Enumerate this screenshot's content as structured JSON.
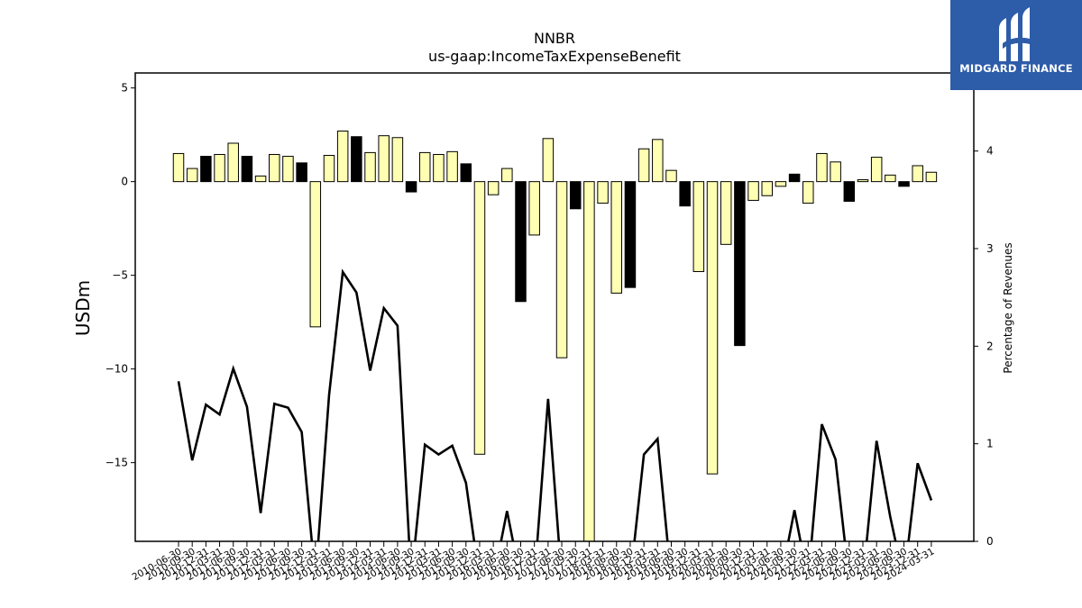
{
  "brand": {
    "name": "MIDGARD FINANCE",
    "color": "#2d5ca8"
  },
  "chart_data": {
    "type": "bar",
    "title": "NNBR",
    "subtitle": "us-gaap:IncomeTaxExpenseBenefit",
    "ylabel": "USDm",
    "ylabel_right": "Percentage of Revenues",
    "ylim": [
      -19.2,
      5.8
    ],
    "ylim_right": [
      0,
      4.8
    ],
    "yticks": [
      5,
      0,
      -5,
      -10,
      -15
    ],
    "yticks_right": [
      0,
      1,
      2,
      3,
      4
    ],
    "grid": false,
    "colors": {
      "positive_bar": "#ffffb3",
      "annual_bar": "#000000",
      "line": "#000000"
    },
    "x": [
      "2010-06-30",
      "2010-09-30",
      "2010-12-31",
      "2011-03-31",
      "2011-06-30",
      "2011-09-30",
      "2011-12-31",
      "2012-03-31",
      "2012-06-30",
      "2012-09-30",
      "2012-12-31",
      "2013-03-31",
      "2013-06-30",
      "2013-09-30",
      "2013-12-31",
      "2014-03-31",
      "2014-06-30",
      "2014-09-30",
      "2014-12-31",
      "2015-03-31",
      "2015-06-30",
      "2015-09-30",
      "2015-12-31",
      "2016-03-31",
      "2016-06-30",
      "2016-09-30",
      "2016-12-31",
      "2017-03-31",
      "2017-06-30",
      "2017-09-30",
      "2017-12-31",
      "2018-03-31",
      "2018-06-30",
      "2018-09-30",
      "2018-12-31",
      "2019-03-31",
      "2019-06-30",
      "2019-09-30",
      "2019-12-31",
      "2020-03-31",
      "2020-06-30",
      "2020-09-30",
      "2020-12-31",
      "2021-03-31",
      "2021-06-30",
      "2021-09-30",
      "2021-12-31",
      "2022-03-31",
      "2022-06-30",
      "2022-09-30",
      "2022-12-31",
      "2023-03-31",
      "2023-06-30",
      "2023-09-30",
      "2023-12-31",
      "2024-03-31"
    ],
    "xtick_labels": [
      "2010-06-30",
      "2010-09-30",
      "2010-12-31",
      "2011-03-31",
      "2011-06-30",
      "2011-09-30",
      "2011-12-31",
      "2012-03-31",
      "2012-06-30",
      "2012-09-30",
      "2012-12-31",
      "2013-03-31",
      "2013-06-30",
      "2013-09-30",
      "2013-12-31",
      "2014-03-31",
      "2014-06-30",
      "2014-09-30",
      "2014-12-31",
      "2015-03-31",
      "2015-06-30",
      "2015-09-30",
      "2015-12-31",
      "2016-03-31",
      "2016-06-30",
      "2016-09-30",
      "2016-12-31",
      "2017-03-31",
      "2017-06-30",
      "2017-09-30",
      "2017-12-31",
      "2018-03-31",
      "2018-06-30",
      "2018-09-30",
      "2018-12-31",
      "2019-03-31",
      "2019-06-30",
      "2019-09-30",
      "2019-12-31",
      "2020-03-31",
      "2020-06-30",
      "2020-09-30",
      "2020-12-31",
      "2021-03-31",
      "2021-06-30",
      "2021-09-30",
      "2021-12-31",
      "2022-03-31",
      "2022-06-30",
      "2022-09-30",
      "2022-12-31",
      "2023-03-31",
      "2023-06-30",
      "2023-09-30",
      "2023-12-31",
      "2024-03-31"
    ],
    "series": [
      {
        "values": [
          1.5,
          0.7,
          1.35,
          1.45,
          2.05,
          1.35,
          0.3,
          1.45,
          1.35,
          1.0,
          -7.75,
          1.4,
          2.7,
          2.4,
          1.55,
          2.45,
          2.35,
          -0.55,
          1.55,
          1.45,
          1.6,
          0.95,
          -14.55,
          -0.7,
          0.7,
          -6.4,
          -2.85,
          2.3,
          -9.4,
          -1.45,
          -19.2,
          -1.15,
          -5.95,
          -5.65,
          1.75,
          2.25,
          0.6,
          -1.3,
          -4.8,
          -15.6,
          -3.35,
          -8.75,
          -1.0,
          -0.75,
          -0.25,
          0.4,
          -1.15,
          1.5,
          1.05,
          -1.05,
          0.1,
          1.3,
          0.35,
          -0.25,
          0.85,
          0.5
        ],
        "annual": [
          false,
          false,
          true,
          false,
          false,
          true,
          false,
          false,
          false,
          true,
          false,
          false,
          false,
          true,
          false,
          false,
          false,
          true,
          false,
          false,
          false,
          true,
          false,
          false,
          false,
          true,
          false,
          false,
          false,
          true,
          false,
          false,
          false,
          true,
          false,
          false,
          false,
          true,
          false,
          false,
          false,
          true,
          false,
          false,
          false,
          true,
          false,
          false,
          false,
          true,
          false,
          false,
          false,
          true,
          false,
          false
        ]
      },
      {
        "axis": "right",
        "type": "line",
        "values": [
          1.64,
          0.83,
          1.4,
          1.3,
          1.77,
          1.38,
          0.29,
          1.41,
          1.37,
          1.12,
          null,
          1.5,
          2.76,
          2.55,
          1.75,
          2.39,
          2.21,
          null,
          0.99,
          0.89,
          0.98,
          0.6,
          null,
          null,
          0.31,
          null,
          null,
          1.46,
          null,
          null,
          null,
          null,
          null,
          null,
          0.89,
          1.05,
          null,
          null,
          null,
          null,
          null,
          null,
          null,
          null,
          null,
          0.32,
          null,
          1.2,
          0.84,
          null,
          null,
          1.03,
          0.25,
          null,
          0.8,
          0.42
        ]
      }
    ]
  }
}
